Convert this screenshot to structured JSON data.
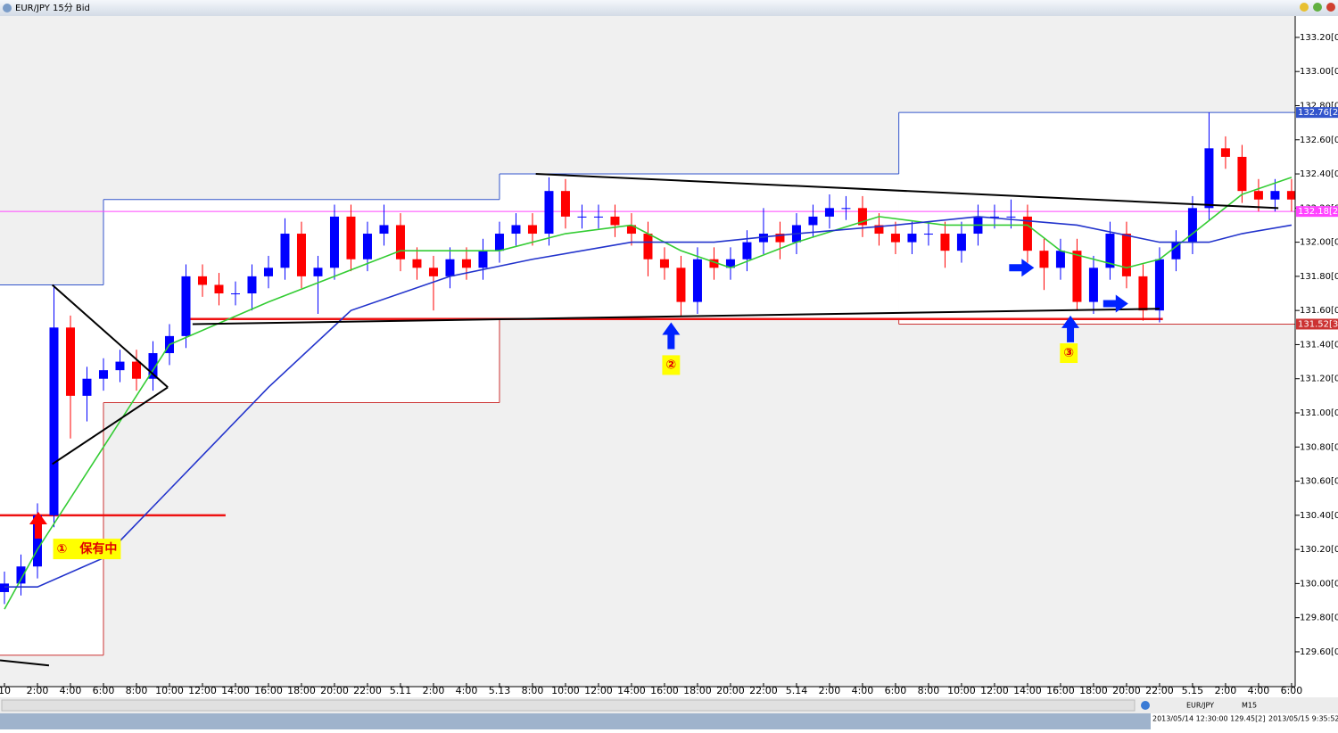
{
  "window": {
    "title": "EUR/JPY 15分 Bid"
  },
  "status": {
    "symbol": "EUR/JPY",
    "period": "M15",
    "cursor": "2013/05/14 12:30:00   129.45[2]",
    "clock": "2013/05/15 9:35:52"
  },
  "chart_data": {
    "type": "candlestick",
    "x": [
      0,
      1,
      2,
      3,
      4,
      5,
      6,
      7,
      8,
      9,
      10,
      11,
      12,
      13,
      14,
      15,
      16,
      17,
      18,
      19,
      20,
      21,
      22,
      23,
      24,
      25,
      26,
      27,
      28,
      29,
      30,
      31,
      32,
      33,
      34,
      35,
      36,
      37,
      38,
      39,
      40,
      41,
      42,
      43,
      44,
      45,
      46,
      47,
      48,
      49,
      50,
      51,
      52,
      53,
      54,
      55,
      56,
      57,
      58,
      59,
      60,
      61,
      62,
      63,
      64,
      65,
      66,
      67,
      68,
      69,
      70,
      71,
      72,
      73,
      74,
      75,
      76,
      77,
      78
    ],
    "open": [
      129.95,
      130.0,
      130.1,
      130.4,
      131.5,
      131.1,
      131.2,
      131.25,
      131.3,
      131.2,
      131.35,
      131.45,
      131.8,
      131.75,
      131.7,
      131.7,
      131.8,
      131.85,
      132.05,
      131.8,
      131.85,
      132.15,
      131.9,
      132.05,
      132.1,
      131.9,
      131.85,
      131.8,
      131.9,
      131.85,
      131.95,
      132.05,
      132.1,
      132.05,
      132.3,
      132.15,
      132.15,
      132.15,
      132.1,
      132.05,
      131.9,
      131.85,
      131.65,
      131.9,
      131.85,
      131.9,
      132.0,
      132.05,
      132.0,
      132.1,
      132.15,
      132.2,
      132.2,
      132.1,
      132.05,
      132.0,
      132.05,
      132.05,
      131.95,
      132.05,
      132.15,
      132.15,
      132.15,
      131.95,
      131.85,
      131.95,
      131.65,
      131.85,
      132.05,
      131.8,
      131.6,
      131.9,
      132.0,
      132.2,
      132.55,
      132.5,
      132.3,
      132.25,
      132.3
    ],
    "high": [
      130.07,
      130.17,
      130.47,
      131.75,
      131.57,
      131.27,
      131.32,
      131.37,
      131.37,
      131.42,
      131.52,
      131.87,
      131.87,
      131.82,
      131.77,
      131.87,
      131.92,
      132.14,
      132.12,
      131.92,
      132.22,
      132.22,
      132.12,
      132.22,
      132.17,
      131.97,
      131.92,
      131.97,
      131.97,
      132.02,
      132.12,
      132.17,
      132.17,
      132.38,
      132.37,
      132.22,
      132.22,
      132.22,
      132.17,
      132.12,
      131.97,
      131.92,
      131.97,
      131.97,
      131.97,
      132.07,
      132.2,
      132.12,
      132.17,
      132.22,
      132.28,
      132.27,
      132.27,
      132.17,
      132.12,
      132.12,
      132.12,
      132.12,
      132.12,
      132.22,
      132.22,
      132.25,
      132.22,
      132.02,
      132.02,
      132.02,
      131.92,
      132.12,
      132.12,
      131.87,
      131.97,
      132.07,
      132.27,
      132.76,
      132.62,
      132.57,
      132.37,
      132.37,
      132.37
    ],
    "low": [
      129.88,
      129.93,
      130.03,
      130.33,
      130.85,
      130.95,
      131.13,
      131.18,
      131.13,
      131.13,
      131.28,
      131.38,
      131.68,
      131.63,
      131.63,
      131.6,
      131.73,
      131.78,
      131.73,
      131.58,
      131.78,
      131.83,
      131.83,
      131.98,
      131.83,
      131.78,
      131.6,
      131.73,
      131.78,
      131.78,
      131.88,
      131.98,
      131.98,
      131.98,
      132.08,
      132.08,
      132.08,
      132.03,
      131.98,
      131.8,
      131.78,
      131.57,
      131.58,
      131.78,
      131.78,
      131.83,
      131.93,
      131.9,
      131.93,
      132.03,
      132.08,
      132.13,
      132.03,
      131.98,
      131.93,
      131.93,
      131.98,
      131.85,
      131.88,
      131.98,
      132.08,
      132.08,
      131.88,
      131.72,
      131.78,
      131.6,
      131.58,
      131.78,
      131.73,
      131.54,
      131.53,
      131.83,
      131.93,
      132.13,
      132.43,
      132.23,
      132.18,
      132.18,
      132.18
    ],
    "close": [
      130.0,
      130.1,
      130.4,
      131.5,
      131.1,
      131.2,
      131.25,
      131.3,
      131.2,
      131.35,
      131.45,
      131.8,
      131.75,
      131.7,
      131.7,
      131.8,
      131.85,
      132.05,
      131.8,
      131.85,
      132.15,
      131.9,
      132.05,
      132.1,
      131.9,
      131.85,
      131.8,
      131.9,
      131.85,
      131.95,
      132.05,
      132.1,
      132.05,
      132.3,
      132.15,
      132.15,
      132.15,
      132.1,
      132.05,
      131.9,
      131.85,
      131.65,
      131.9,
      131.85,
      131.9,
      132.0,
      132.05,
      132.0,
      132.1,
      132.15,
      132.2,
      132.2,
      132.1,
      132.05,
      132.0,
      132.05,
      132.05,
      131.95,
      132.05,
      132.15,
      132.15,
      132.15,
      131.95,
      131.85,
      131.95,
      131.65,
      131.85,
      132.05,
      131.8,
      131.6,
      131.9,
      132.0,
      132.2,
      132.55,
      132.5,
      132.3,
      132.25,
      132.3,
      132.25
    ],
    "up_color": "#0000ff",
    "down_color": "#ff0000",
    "series": [
      {
        "color": "#33cc33",
        "x": [
          0,
          2,
          6,
          10,
          16,
          20,
          24,
          30,
          34,
          38,
          41,
          44,
          48,
          53,
          57,
          62,
          64,
          68,
          70,
          72,
          75,
          78
        ],
        "values": [
          129.85,
          130.2,
          130.8,
          131.4,
          131.65,
          131.8,
          131.95,
          131.95,
          132.05,
          132.1,
          131.95,
          131.85,
          132.0,
          132.15,
          132.1,
          132.1,
          131.95,
          131.85,
          131.9,
          132.05,
          132.28,
          132.38
        ]
      },
      {
        "color": "#2233cc",
        "x": [
          0,
          2,
          6,
          10,
          16,
          21,
          27,
          32,
          38,
          43,
          48,
          54,
          59,
          65,
          70,
          73,
          75,
          78
        ],
        "values": [
          129.98,
          129.98,
          130.15,
          130.55,
          131.15,
          131.6,
          131.8,
          131.9,
          132.0,
          132.0,
          132.05,
          132.1,
          132.15,
          132.1,
          132.0,
          132.0,
          132.05,
          132.1
        ]
      }
    ],
    "day_ranges": [
      {
        "start": -0.27,
        "end": 6,
        "high": 131.75,
        "low": 129.58
      },
      {
        "start": 6,
        "end": 30,
        "high": 132.25,
        "low": 131.06
      },
      {
        "start": 30,
        "end": 54.2,
        "high": 132.4,
        "low": 131.55
      },
      {
        "start": 54.2,
        "end": 78.22,
        "high": 132.76,
        "low": 131.52
      }
    ],
    "range_colors": {
      "high": "#3355cc",
      "low": "#cc3333"
    },
    "levels": [
      {
        "value": 132.18,
        "start": -0.27,
        "end": 78.22,
        "color": "#ff44ff",
        "width": 1
      },
      {
        "value": 131.55,
        "start": 10.8,
        "end": 70.2,
        "color": "#ee1111",
        "width": 2.5
      },
      {
        "value": 130.4,
        "start": -0.27,
        "end": 13.4,
        "color": "#ee1111",
        "width": 2.5
      }
    ],
    "trendlines": [
      {
        "x": [
          2.9,
          9.9
        ],
        "y": [
          131.75,
          131.15
        ]
      },
      {
        "x": [
          2.9,
          9.9
        ],
        "y": [
          130.7,
          131.15
        ]
      },
      {
        "x": [
          11.4,
          70
        ],
        "y": [
          131.52,
          131.61
        ]
      },
      {
        "x": [
          32.2,
          77.2
        ],
        "y": [
          132.4,
          132.2
        ]
      },
      {
        "x": [
          -0.27,
          2.7
        ],
        "y": [
          129.55,
          129.52
        ]
      }
    ],
    "arrows": [
      {
        "dir": "up",
        "color": "#ff0000",
        "x": 2.05,
        "y": 130.42
      },
      {
        "dir": "up",
        "color": "#0022ff",
        "x": 40.4,
        "y": 131.53
      },
      {
        "dir": "up",
        "color": "#0022ff",
        "x": 64.6,
        "y": 131.57
      },
      {
        "dir": "right",
        "color": "#0022ff",
        "x": 62.4,
        "y": 131.85
      },
      {
        "dir": "right",
        "color": "#0022ff",
        "x": 68.1,
        "y": 131.64
      }
    ],
    "annotations": [
      {
        "text": "①　保有中",
        "x": 5.0,
        "y": 130.2
      },
      {
        "text": "②",
        "x": 40.4,
        "y": 131.28
      },
      {
        "text": "③",
        "x": 64.5,
        "y": 131.35
      }
    ],
    "price_labels": [
      {
        "value": 132.76,
        "label": "132.76[2",
        "color": "#3355cc"
      },
      {
        "value": 132.18,
        "label": "132.18[2",
        "color": "#ff44ff"
      },
      {
        "value": 131.52,
        "label": "131.52[3",
        "color": "#cc3333"
      }
    ],
    "xlim": [
      -0.27,
      78.22
    ],
    "ylim": [
      129.396,
      133.325
    ],
    "yticks": [
      {
        "value": 133.2,
        "label": "133.20[0"
      },
      {
        "value": 133.0,
        "label": "133.00[0"
      },
      {
        "value": 132.8,
        "label": "132.80[0"
      },
      {
        "value": 132.6,
        "label": "132.60[0"
      },
      {
        "value": 132.4,
        "label": "132.40[0"
      },
      {
        "value": 132.2,
        "label": "132.20[0"
      },
      {
        "value": 132.0,
        "label": "132.00[0"
      },
      {
        "value": 131.8,
        "label": "131.80[0"
      },
      {
        "value": 131.6,
        "label": "131.60[0"
      },
      {
        "value": 131.4,
        "label": "131.40[0"
      },
      {
        "value": 131.2,
        "label": "131.20[0"
      },
      {
        "value": 131.0,
        "label": "131.00[0"
      },
      {
        "value": 130.8,
        "label": "130.80[0"
      },
      {
        "value": 130.6,
        "label": "130.60[0"
      },
      {
        "value": 130.4,
        "label": "130.40[0"
      },
      {
        "value": 130.2,
        "label": "130.20[0"
      },
      {
        "value": 130.0,
        "label": "130.00[0"
      },
      {
        "value": 129.8,
        "label": "129.80[0"
      },
      {
        "value": 129.6,
        "label": "129.60[0"
      }
    ],
    "xticks": [
      {
        "value": 0,
        "label": "10"
      },
      {
        "value": 2,
        "label": "2:00"
      },
      {
        "value": 4,
        "label": "4:00"
      },
      {
        "value": 6,
        "label": "6:00"
      },
      {
        "value": 8,
        "label": "8:00"
      },
      {
        "value": 10,
        "label": "10:00"
      },
      {
        "value": 12,
        "label": "12:00"
      },
      {
        "value": 14,
        "label": "14:00"
      },
      {
        "value": 16,
        "label": "16:00"
      },
      {
        "value": 18,
        "label": "18:00"
      },
      {
        "value": 20,
        "label": "20:00"
      },
      {
        "value": 22,
        "label": "22:00"
      },
      {
        "value": 24,
        "label": "5.11"
      },
      {
        "value": 26,
        "label": "2:00"
      },
      {
        "value": 28,
        "label": "4:00"
      },
      {
        "value": 30,
        "label": "5.13"
      },
      {
        "value": 32,
        "label": "8:00"
      },
      {
        "value": 34,
        "label": "10:00"
      },
      {
        "value": 36,
        "label": "12:00"
      },
      {
        "value": 38,
        "label": "14:00"
      },
      {
        "value": 40,
        "label": "16:00"
      },
      {
        "value": 42,
        "label": "18:00"
      },
      {
        "value": 44,
        "label": "20:00"
      },
      {
        "value": 46,
        "label": "22:00"
      },
      {
        "value": 48,
        "label": "5.14"
      },
      {
        "value": 50,
        "label": "2:00"
      },
      {
        "value": 52,
        "label": "4:00"
      },
      {
        "value": 54,
        "label": "6:00"
      },
      {
        "value": 56,
        "label": "8:00"
      },
      {
        "value": 58,
        "label": "10:00"
      },
      {
        "value": 60,
        "label": "12:00"
      },
      {
        "value": 62,
        "label": "14:00"
      },
      {
        "value": 64,
        "label": "16:00"
      },
      {
        "value": 66,
        "label": "18:00"
      },
      {
        "value": 68,
        "label": "20:00"
      },
      {
        "value": 70,
        "label": "22:00"
      },
      {
        "value": 72,
        "label": "5.15"
      },
      {
        "value": 74,
        "label": "2:00"
      },
      {
        "value": 76,
        "label": "4:00"
      },
      {
        "value": 78,
        "label": "6:00"
      }
    ]
  }
}
